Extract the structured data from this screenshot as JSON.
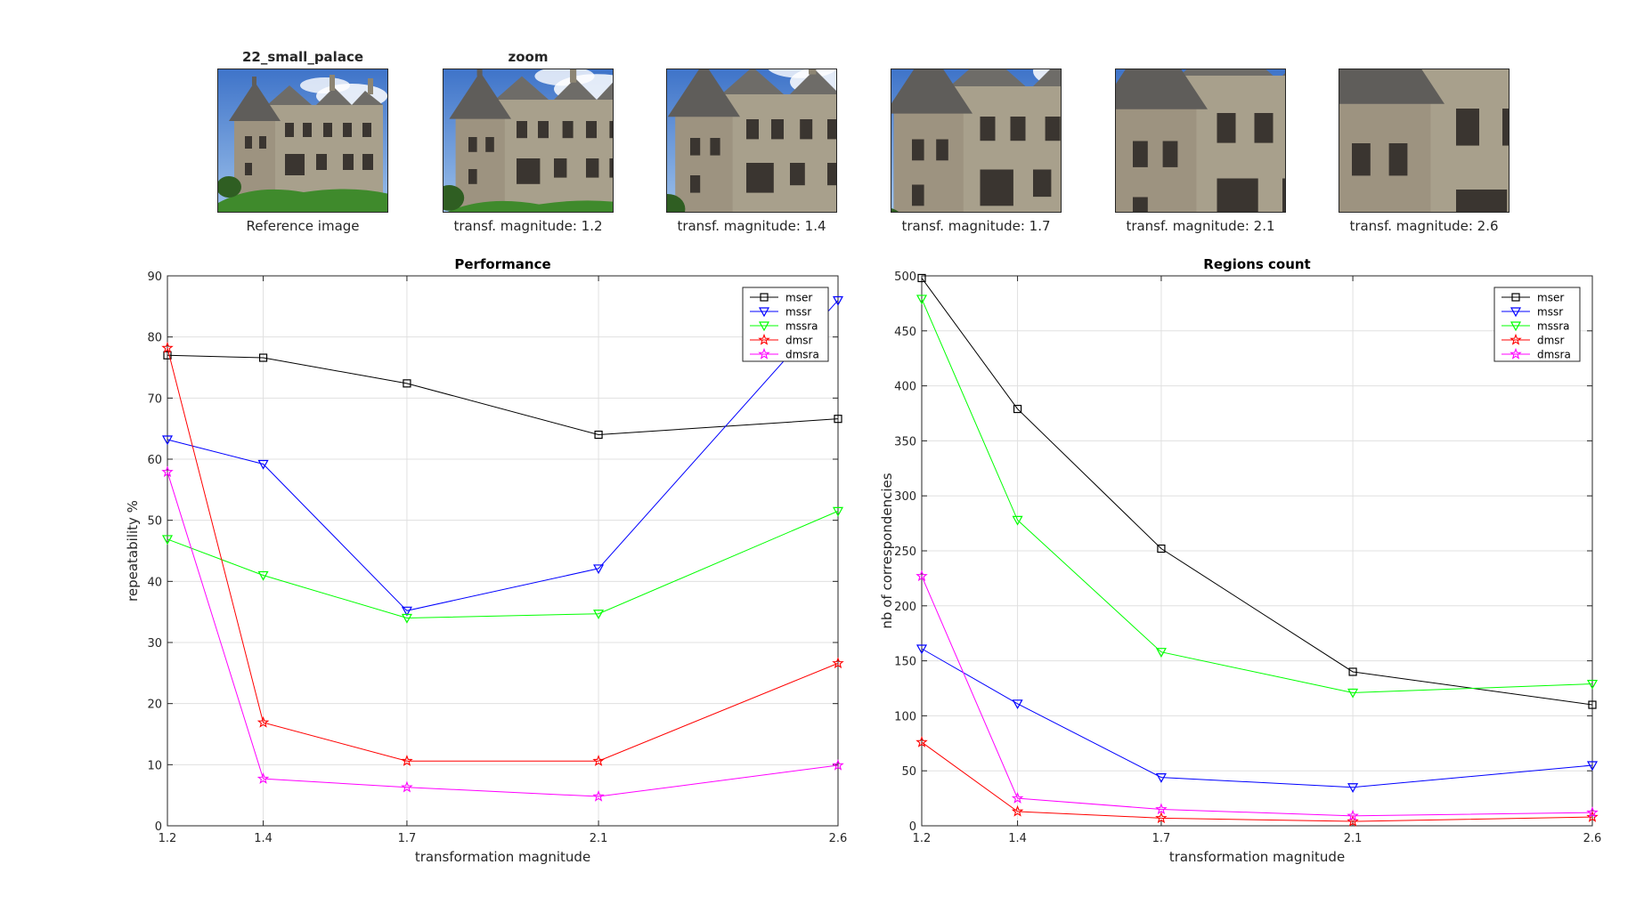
{
  "thumbnails": [
    {
      "title": "22_small_palace",
      "caption": "Reference image",
      "zoom": 1.0
    },
    {
      "title": "zoom",
      "caption": "transf. magnitude: 1.2",
      "zoom": 1.2
    },
    {
      "title": "",
      "caption": "transf. magnitude: 1.4",
      "zoom": 1.4
    },
    {
      "title": "",
      "caption": "transf. magnitude: 1.7",
      "zoom": 1.7
    },
    {
      "title": "",
      "caption": "transf. magnitude: 2.1",
      "zoom": 2.1
    },
    {
      "title": "",
      "caption": "transf. magnitude: 2.6",
      "zoom": 2.6
    }
  ],
  "colors": {
    "mser": "#000000",
    "mssr": "#0000ff",
    "mssra": "#00ff00",
    "dmsr": "#ff0000",
    "dmsra": "#ff00ff",
    "grid": "#e0e0e0",
    "axis": "#262626"
  },
  "chart_data": [
    {
      "type": "line",
      "title": "Performance",
      "xlabel": "transformation magnitude",
      "ylabel": "repeatability %",
      "x": [
        1.2,
        1.4,
        1.7,
        2.1,
        2.6
      ],
      "xticks": [
        "1.2",
        "1.4",
        "1.7",
        "2.1",
        "2.6"
      ],
      "xlim": [
        1.2,
        2.6
      ],
      "ylim": [
        0,
        90
      ],
      "yticks": [
        "0",
        "10",
        "20",
        "30",
        "40",
        "50",
        "60",
        "70",
        "80",
        "90"
      ],
      "grid": true,
      "legend": "top-right",
      "series": [
        {
          "name": "mser",
          "marker": "square",
          "values": [
            77.0,
            76.6,
            72.4,
            64.0,
            66.6
          ]
        },
        {
          "name": "mssr",
          "marker": "triangle-down",
          "values": [
            63.2,
            59.2,
            35.2,
            42.1,
            86.0
          ]
        },
        {
          "name": "mssra",
          "marker": "triangle-down",
          "values": [
            46.9,
            41.0,
            34.0,
            34.7,
            51.5
          ]
        },
        {
          "name": "dmsr",
          "marker": "star",
          "values": [
            78.2,
            16.9,
            10.6,
            10.6,
            26.6
          ]
        },
        {
          "name": "dmsra",
          "marker": "star",
          "values": [
            57.9,
            7.7,
            6.3,
            4.8,
            9.9
          ]
        }
      ]
    },
    {
      "type": "line",
      "title": "Regions count",
      "xlabel": "transformation magnitude",
      "ylabel": "nb of correspondencies",
      "x": [
        1.2,
        1.4,
        1.7,
        2.1,
        2.6
      ],
      "xticks": [
        "1.2",
        "1.4",
        "1.7",
        "2.1",
        "2.6"
      ],
      "xlim": [
        1.2,
        2.6
      ],
      "ylim": [
        0,
        500
      ],
      "yticks": [
        "0",
        "50",
        "100",
        "150",
        "200",
        "250",
        "300",
        "350",
        "400",
        "450",
        "500"
      ],
      "grid": true,
      "legend": "top-right",
      "series": [
        {
          "name": "mser",
          "marker": "square",
          "values": [
            498,
            379,
            252,
            140,
            110
          ]
        },
        {
          "name": "mssr",
          "marker": "triangle-down",
          "values": [
            161,
            111,
            44,
            35,
            55
          ]
        },
        {
          "name": "mssra",
          "marker": "triangle-down",
          "values": [
            479,
            278,
            158,
            121,
            129
          ]
        },
        {
          "name": "dmsr",
          "marker": "star",
          "values": [
            76,
            13,
            7,
            4,
            8
          ]
        },
        {
          "name": "dmsra",
          "marker": "star",
          "values": [
            227,
            25,
            15,
            9,
            12
          ]
        }
      ]
    }
  ]
}
